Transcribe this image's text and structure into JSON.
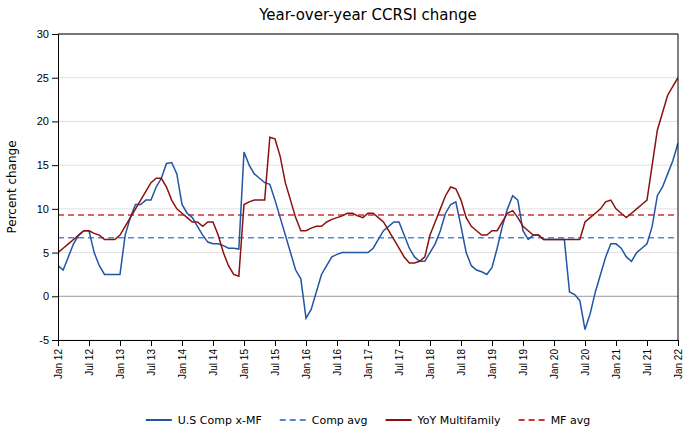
{
  "chart_data": {
    "type": "line",
    "title": "Year-over-year CCRSI change",
    "ylabel": "Percent change",
    "categories": [
      "Jan 12",
      null,
      null,
      null,
      null,
      null,
      "Jul 12",
      null,
      null,
      null,
      null,
      null,
      "Jan 13",
      null,
      null,
      null,
      null,
      null,
      "Jul 13",
      null,
      null,
      null,
      null,
      null,
      "Jan 14",
      null,
      null,
      null,
      null,
      null,
      "Jul 14",
      null,
      null,
      null,
      null,
      null,
      "Jan 15",
      null,
      null,
      null,
      null,
      null,
      "Jul 15",
      null,
      null,
      null,
      null,
      null,
      "Jan 16",
      null,
      null,
      null,
      null,
      null,
      "Jul 16",
      null,
      null,
      null,
      null,
      null,
      "Jan 17",
      null,
      null,
      null,
      null,
      null,
      "Jul 17",
      null,
      null,
      null,
      null,
      null,
      "Jan 18",
      null,
      null,
      null,
      null,
      null,
      "Jul 18",
      null,
      null,
      null,
      null,
      null,
      "Jan 19",
      null,
      null,
      null,
      null,
      null,
      "Jul 19",
      null,
      null,
      null,
      null,
      null,
      "Jan 20",
      null,
      null,
      null,
      null,
      null,
      "Jul 20",
      null,
      null,
      null,
      null,
      null,
      "Jan 21",
      null,
      null,
      null,
      null,
      null,
      "Jul 21",
      null,
      null,
      null,
      null,
      null,
      "Jan 22"
    ],
    "series": [
      {
        "name": "U.S Comp x-MF",
        "color": "#2255A4",
        "line_style": "solid",
        "values": [
          3.5,
          3.0,
          4.5,
          6.0,
          7.0,
          7.5,
          7.5,
          5.0,
          3.5,
          2.5,
          2.5,
          2.5,
          2.5,
          7.0,
          9.0,
          10.5,
          10.5,
          11.0,
          11.0,
          12.5,
          13.5,
          15.2,
          15.3,
          14.0,
          10.5,
          9.5,
          9.0,
          8.0,
          7.0,
          6.2,
          6.0,
          6.0,
          5.8,
          5.5,
          5.5,
          5.4,
          16.5,
          15.0,
          14.0,
          13.5,
          13.0,
          12.8,
          11.0,
          9.0,
          7.0,
          5.0,
          3.0,
          2.0,
          -2.5,
          -1.5,
          0.5,
          2.5,
          3.5,
          4.5,
          4.8,
          5.0,
          5.0,
          5.0,
          5.0,
          5.0,
          5.0,
          5.5,
          6.5,
          7.5,
          8.0,
          8.5,
          8.5,
          7.0,
          5.5,
          4.5,
          4.0,
          4.0,
          5.0,
          6.0,
          7.5,
          9.5,
          10.5,
          10.8,
          8.0,
          5.0,
          3.5,
          3.0,
          2.8,
          2.5,
          3.3,
          5.5,
          8.0,
          10.0,
          11.5,
          11.0,
          7.5,
          6.5,
          7.0,
          7.0,
          6.5,
          6.5,
          6.5,
          6.5,
          6.5,
          0.5,
          0.2,
          -0.5,
          -3.8,
          -2.0,
          0.5,
          2.5,
          4.5,
          6.0,
          6.0,
          5.5,
          4.5,
          4.0,
          5.0,
          5.5,
          6.0,
          8.0,
          11.5,
          12.5,
          14.0,
          15.5,
          17.5
        ]
      },
      {
        "name": "Comp avg",
        "type": "hline",
        "color": "#5588CC",
        "line_style": "dashed",
        "value": 6.7
      },
      {
        "name": "YoY Multifamily",
        "color": "#8B1010",
        "line_style": "solid",
        "values": [
          5.0,
          5.5,
          6.0,
          6.5,
          7.0,
          7.5,
          7.5,
          7.2,
          7.0,
          6.5,
          6.5,
          6.5,
          7.0,
          8.0,
          9.0,
          10.0,
          11.0,
          12.0,
          13.0,
          13.5,
          13.5,
          12.5,
          11.0,
          10.0,
          9.5,
          9.0,
          8.5,
          8.5,
          8.0,
          8.5,
          8.5,
          7.0,
          5.0,
          3.5,
          2.5,
          2.3,
          10.5,
          10.8,
          11.0,
          11.0,
          11.0,
          18.2,
          18.0,
          16.0,
          13.0,
          11.0,
          9.0,
          7.5,
          7.5,
          7.8,
          8.0,
          8.0,
          8.5,
          8.8,
          9.0,
          9.2,
          9.5,
          9.5,
          9.2,
          9.0,
          9.5,
          9.5,
          9.0,
          8.5,
          7.5,
          6.5,
          5.5,
          4.5,
          3.8,
          3.8,
          4.0,
          4.5,
          7.0,
          8.5,
          10.0,
          11.5,
          12.5,
          12.3,
          11.0,
          9.0,
          8.0,
          7.5,
          7.0,
          7.0,
          7.5,
          7.5,
          8.5,
          9.5,
          9.8,
          9.0,
          8.0,
          7.5,
          7.0,
          7.0,
          6.5,
          6.5,
          6.5,
          6.5,
          6.5,
          6.5,
          6.5,
          6.5,
          8.5,
          9.0,
          9.5,
          10.0,
          10.8,
          11.0,
          10.0,
          9.5,
          9.0,
          9.5,
          10.0,
          10.5,
          11.0,
          15.0,
          19.0,
          21.0,
          23.0,
          24.0,
          25.0
        ]
      },
      {
        "name": "MF avg",
        "type": "hline",
        "color": "#CC3333",
        "line_style": "dashed",
        "value": 9.3
      }
    ],
    "ylim": [
      -5,
      30
    ],
    "yticks": [
      -5,
      0,
      5,
      10,
      15,
      20,
      25,
      30
    ],
    "grid": true,
    "legend": "bottom"
  }
}
